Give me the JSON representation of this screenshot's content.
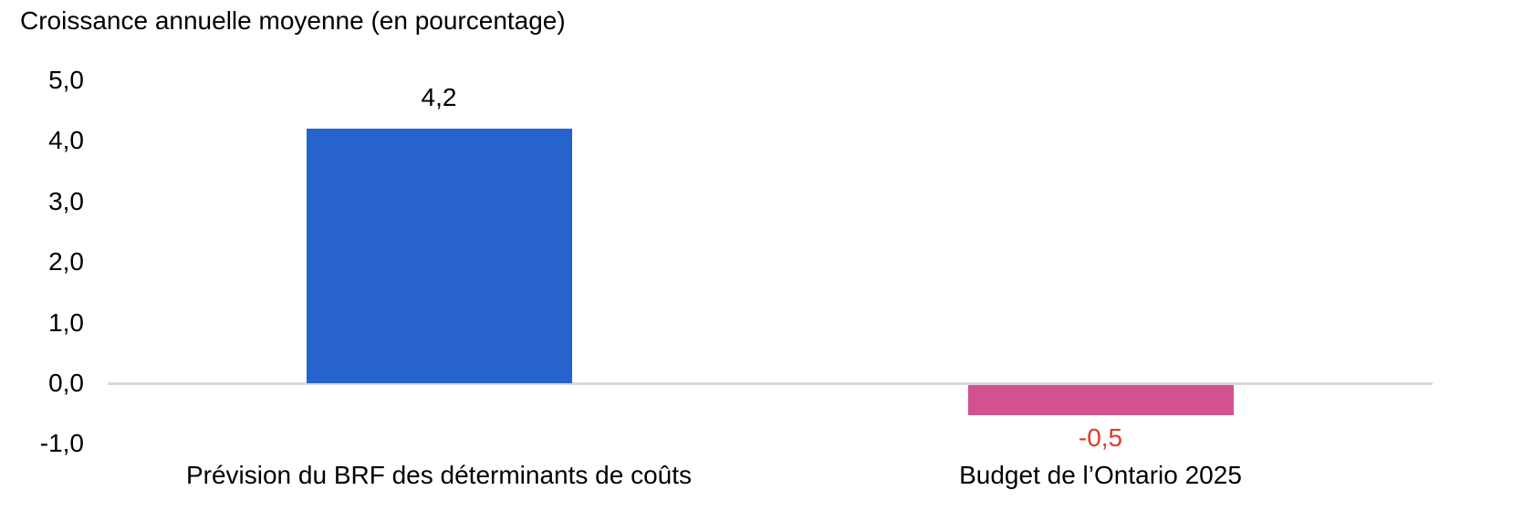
{
  "chart_data": {
    "type": "bar",
    "title": "Croissance annuelle moyenne (en pourcentage)",
    "categories": [
      "Prévision du BRF des déterminants de coûts",
      "Budget de l’Ontario 2025"
    ],
    "values": [
      4.2,
      -0.5
    ],
    "value_labels": [
      "4,2",
      "-0,5"
    ],
    "bar_colors": [
      "#2663CD",
      "#D45190"
    ],
    "value_label_colors": [
      "#000000",
      "#DE3B26"
    ],
    "xlabel": "",
    "ylabel": "",
    "ylim": [
      -1.0,
      5.0
    ],
    "yticks": [
      5.0,
      4.0,
      3.0,
      2.0,
      1.0,
      0.0,
      -1.0
    ],
    "ytick_labels": [
      "5,0",
      "4,0",
      "3,0",
      "2,0",
      "1,0",
      "0,0",
      "-1,0"
    ],
    "number_format": "french-decimal-comma",
    "grid": false,
    "legend": "none",
    "axis_line_color": "#D9D9D9",
    "background_color": "#FFFFFF",
    "text_color": "#000000"
  }
}
